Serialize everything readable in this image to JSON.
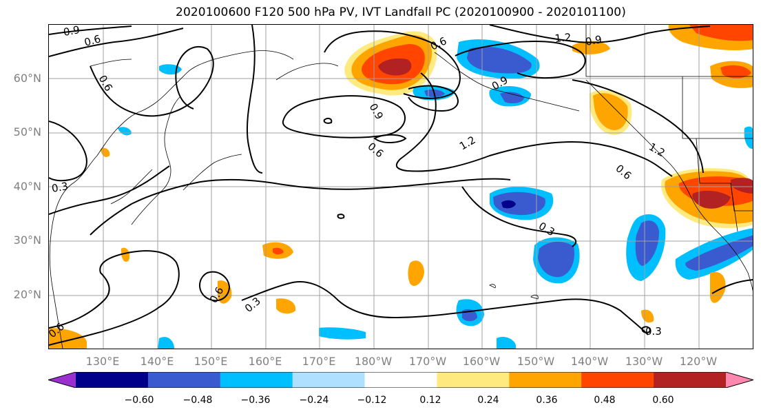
{
  "title": "2020100600 F120 500 hPa PV, IVT Landfall PC (2020100900 - 2020101100)",
  "lat_labels": [
    "60°N",
    "50°N",
    "40°N",
    "30°N",
    "20°N"
  ],
  "lon_labels": [
    "130°E",
    "140°E",
    "150°E",
    "160°E",
    "170°E",
    "180°W",
    "170°W",
    "160°W",
    "150°W",
    "140°W",
    "130°W",
    "120°W"
  ],
  "contour_labels": [
    "0.9",
    "0.6",
    "0.6",
    "0.6",
    "0.9",
    "1.2",
    "0.9",
    "0.9",
    "0.6",
    "1.2",
    "1.2",
    "0.6",
    "0.3",
    "0.3",
    "0.6",
    "0.3",
    "0.3",
    "0.6"
  ],
  "colorbar": {
    "colors": [
      "#9b30d0",
      "#00008b",
      "#3a5bd0",
      "#00bfff",
      "#b0e0ff",
      "#ffffff",
      "#ffea80",
      "#ffa500",
      "#ff4500",
      "#b22222",
      "#ff88b0"
    ],
    "tick_labels": [
      "−0.60",
      "−0.48",
      "−0.36",
      "−0.24",
      "−0.12",
      "0.12",
      "0.24",
      "0.36",
      "0.48",
      "0.60"
    ]
  },
  "colors": {
    "gridline": "#a0a0a0",
    "axis_label": "#808080",
    "contour": "#000000"
  }
}
